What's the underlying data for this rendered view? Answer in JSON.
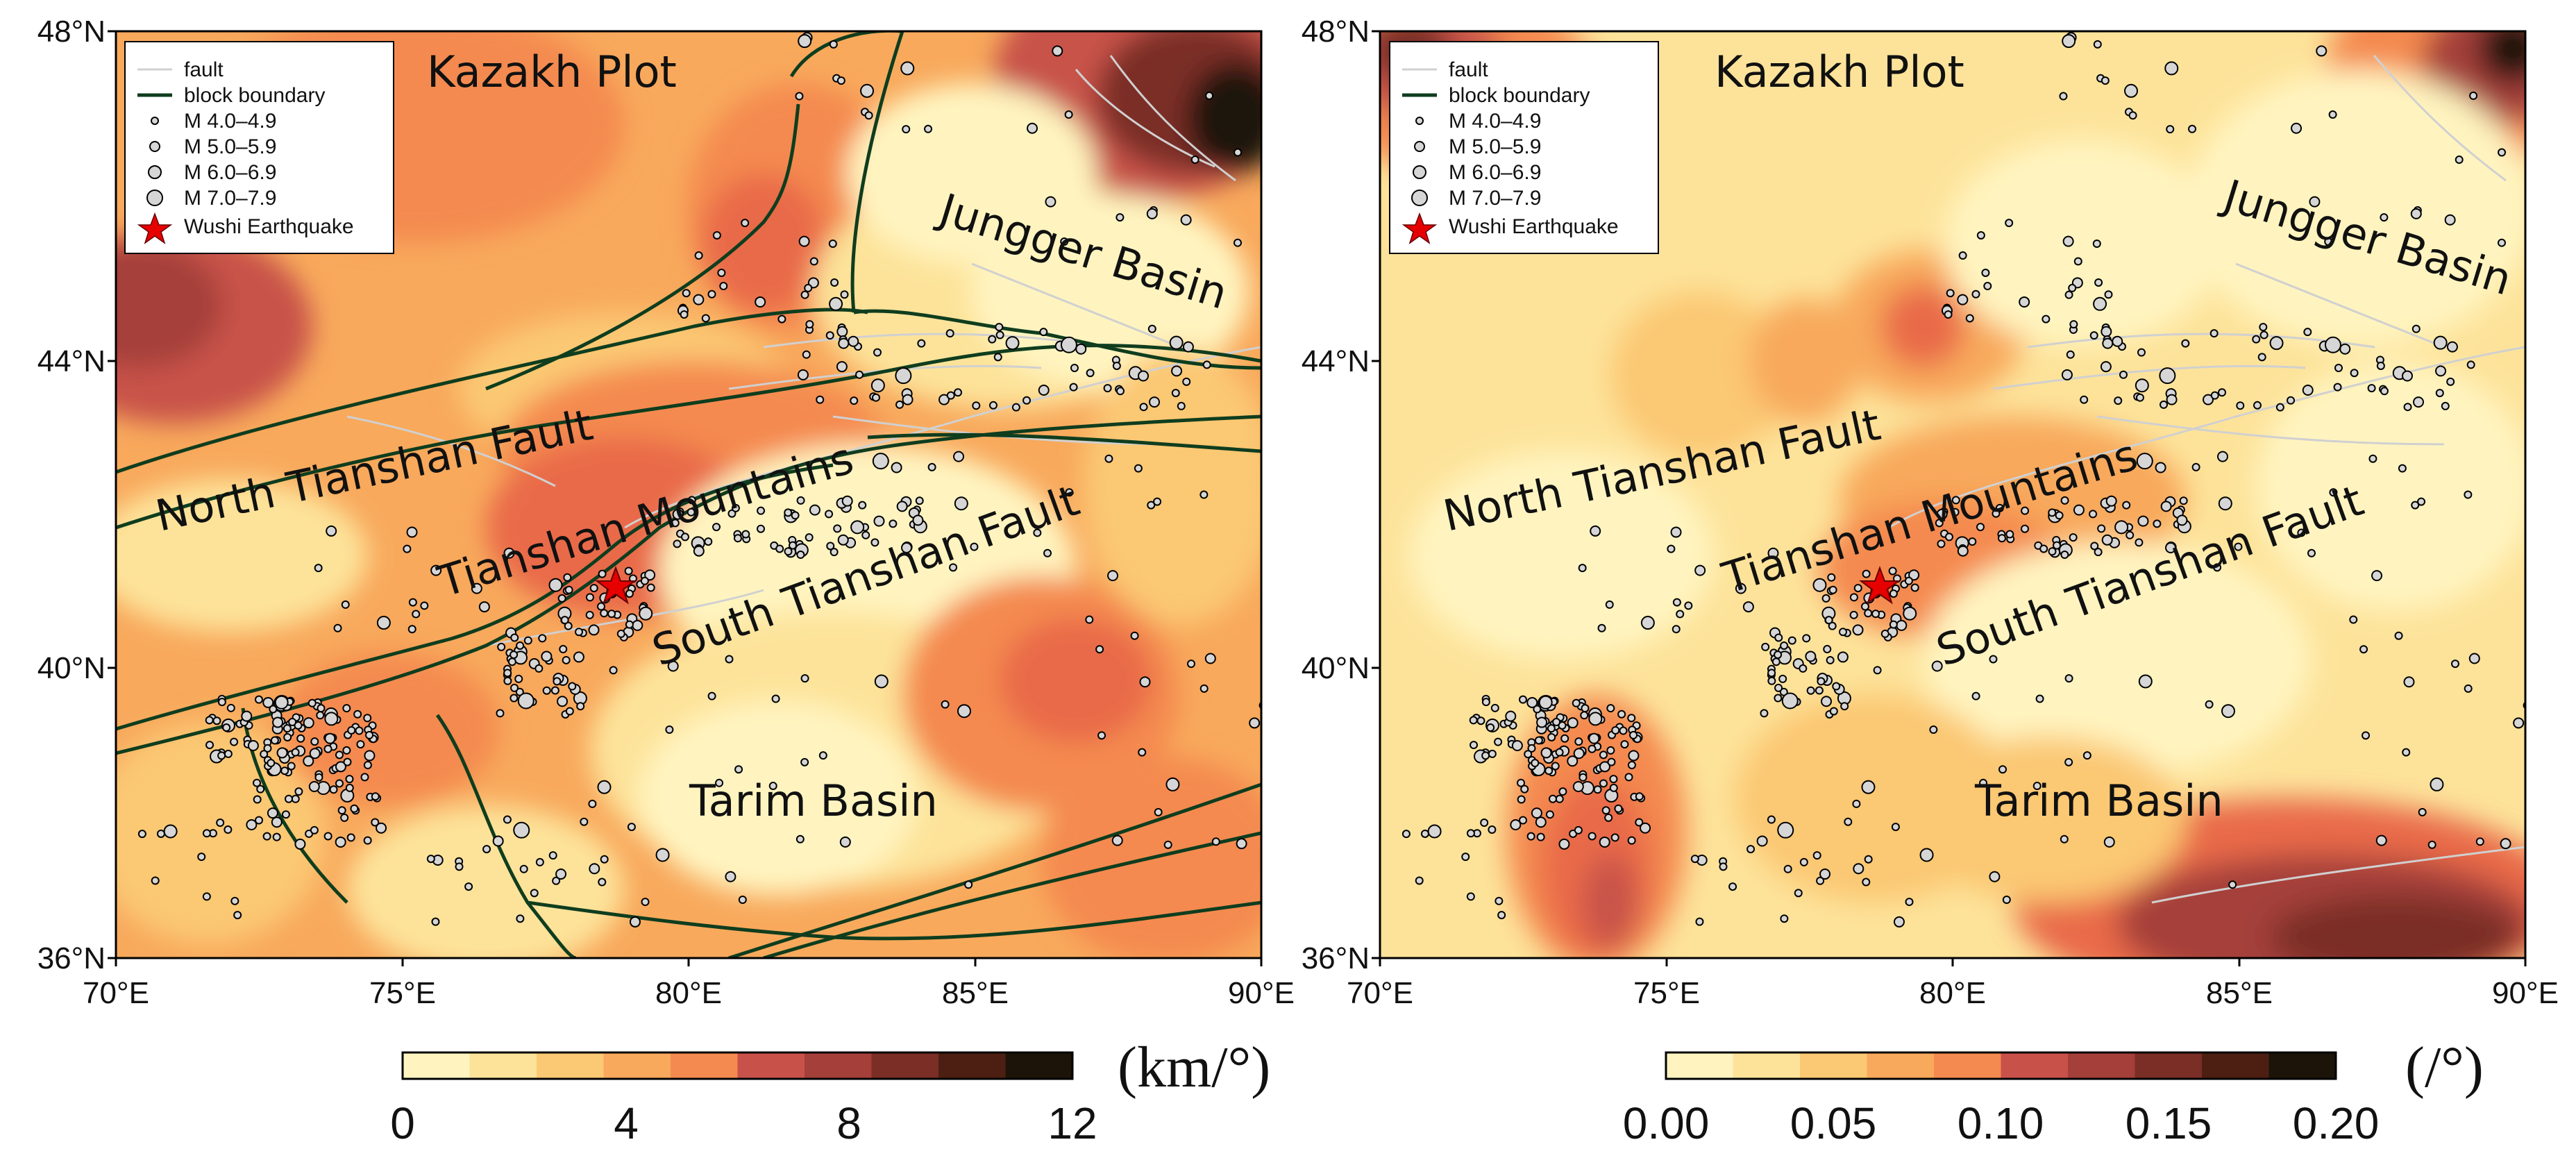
{
  "legend": {
    "fault": "fault",
    "block_boundary": "block boundary",
    "m4": "M 4.0–4.9",
    "m5": "M 5.0–5.9",
    "m6": "M 6.0–6.9",
    "m7": "M 7.0–7.9",
    "wushi": "Wushi Earthquake"
  },
  "axes": {
    "lat_labels": [
      "48°N",
      "44°N",
      "40°N",
      "36°N"
    ],
    "lon_labels": [
      "70°E",
      "75°E",
      "80°E",
      "85°E",
      "90°E"
    ]
  },
  "regions": {
    "kazakh": "Kazakh Plot",
    "jungger": "Jungger Basin",
    "north_fault": "North Tianshan Fault",
    "tianshan": "Tianshan Mountains",
    "south_fault": "South Tianshan Fault",
    "tarim": "Tarim Basin"
  },
  "panel_left": {
    "colorbar_ticks": [
      "0",
      "4",
      "8",
      "12"
    ],
    "unit": "(km/°)"
  },
  "panel_right": {
    "colorbar_ticks": [
      "0.00",
      "0.05",
      "0.10",
      "0.15",
      "0.20"
    ],
    "unit": "(/°)"
  },
  "colors": {
    "scale": [
      "#fff4c0",
      "#fde39a",
      "#fbc873",
      "#f8a95c",
      "#f48a4f",
      "#e96b4a",
      "#c8524a",
      "#a53f3a",
      "#7a2e25",
      "#4d1f12",
      "#1c1408"
    ],
    "boundary": "#0f3d1e",
    "fault": "#d0d0d0",
    "quake_fill": "#d6d6d6",
    "wushi": "#e60000"
  }
}
